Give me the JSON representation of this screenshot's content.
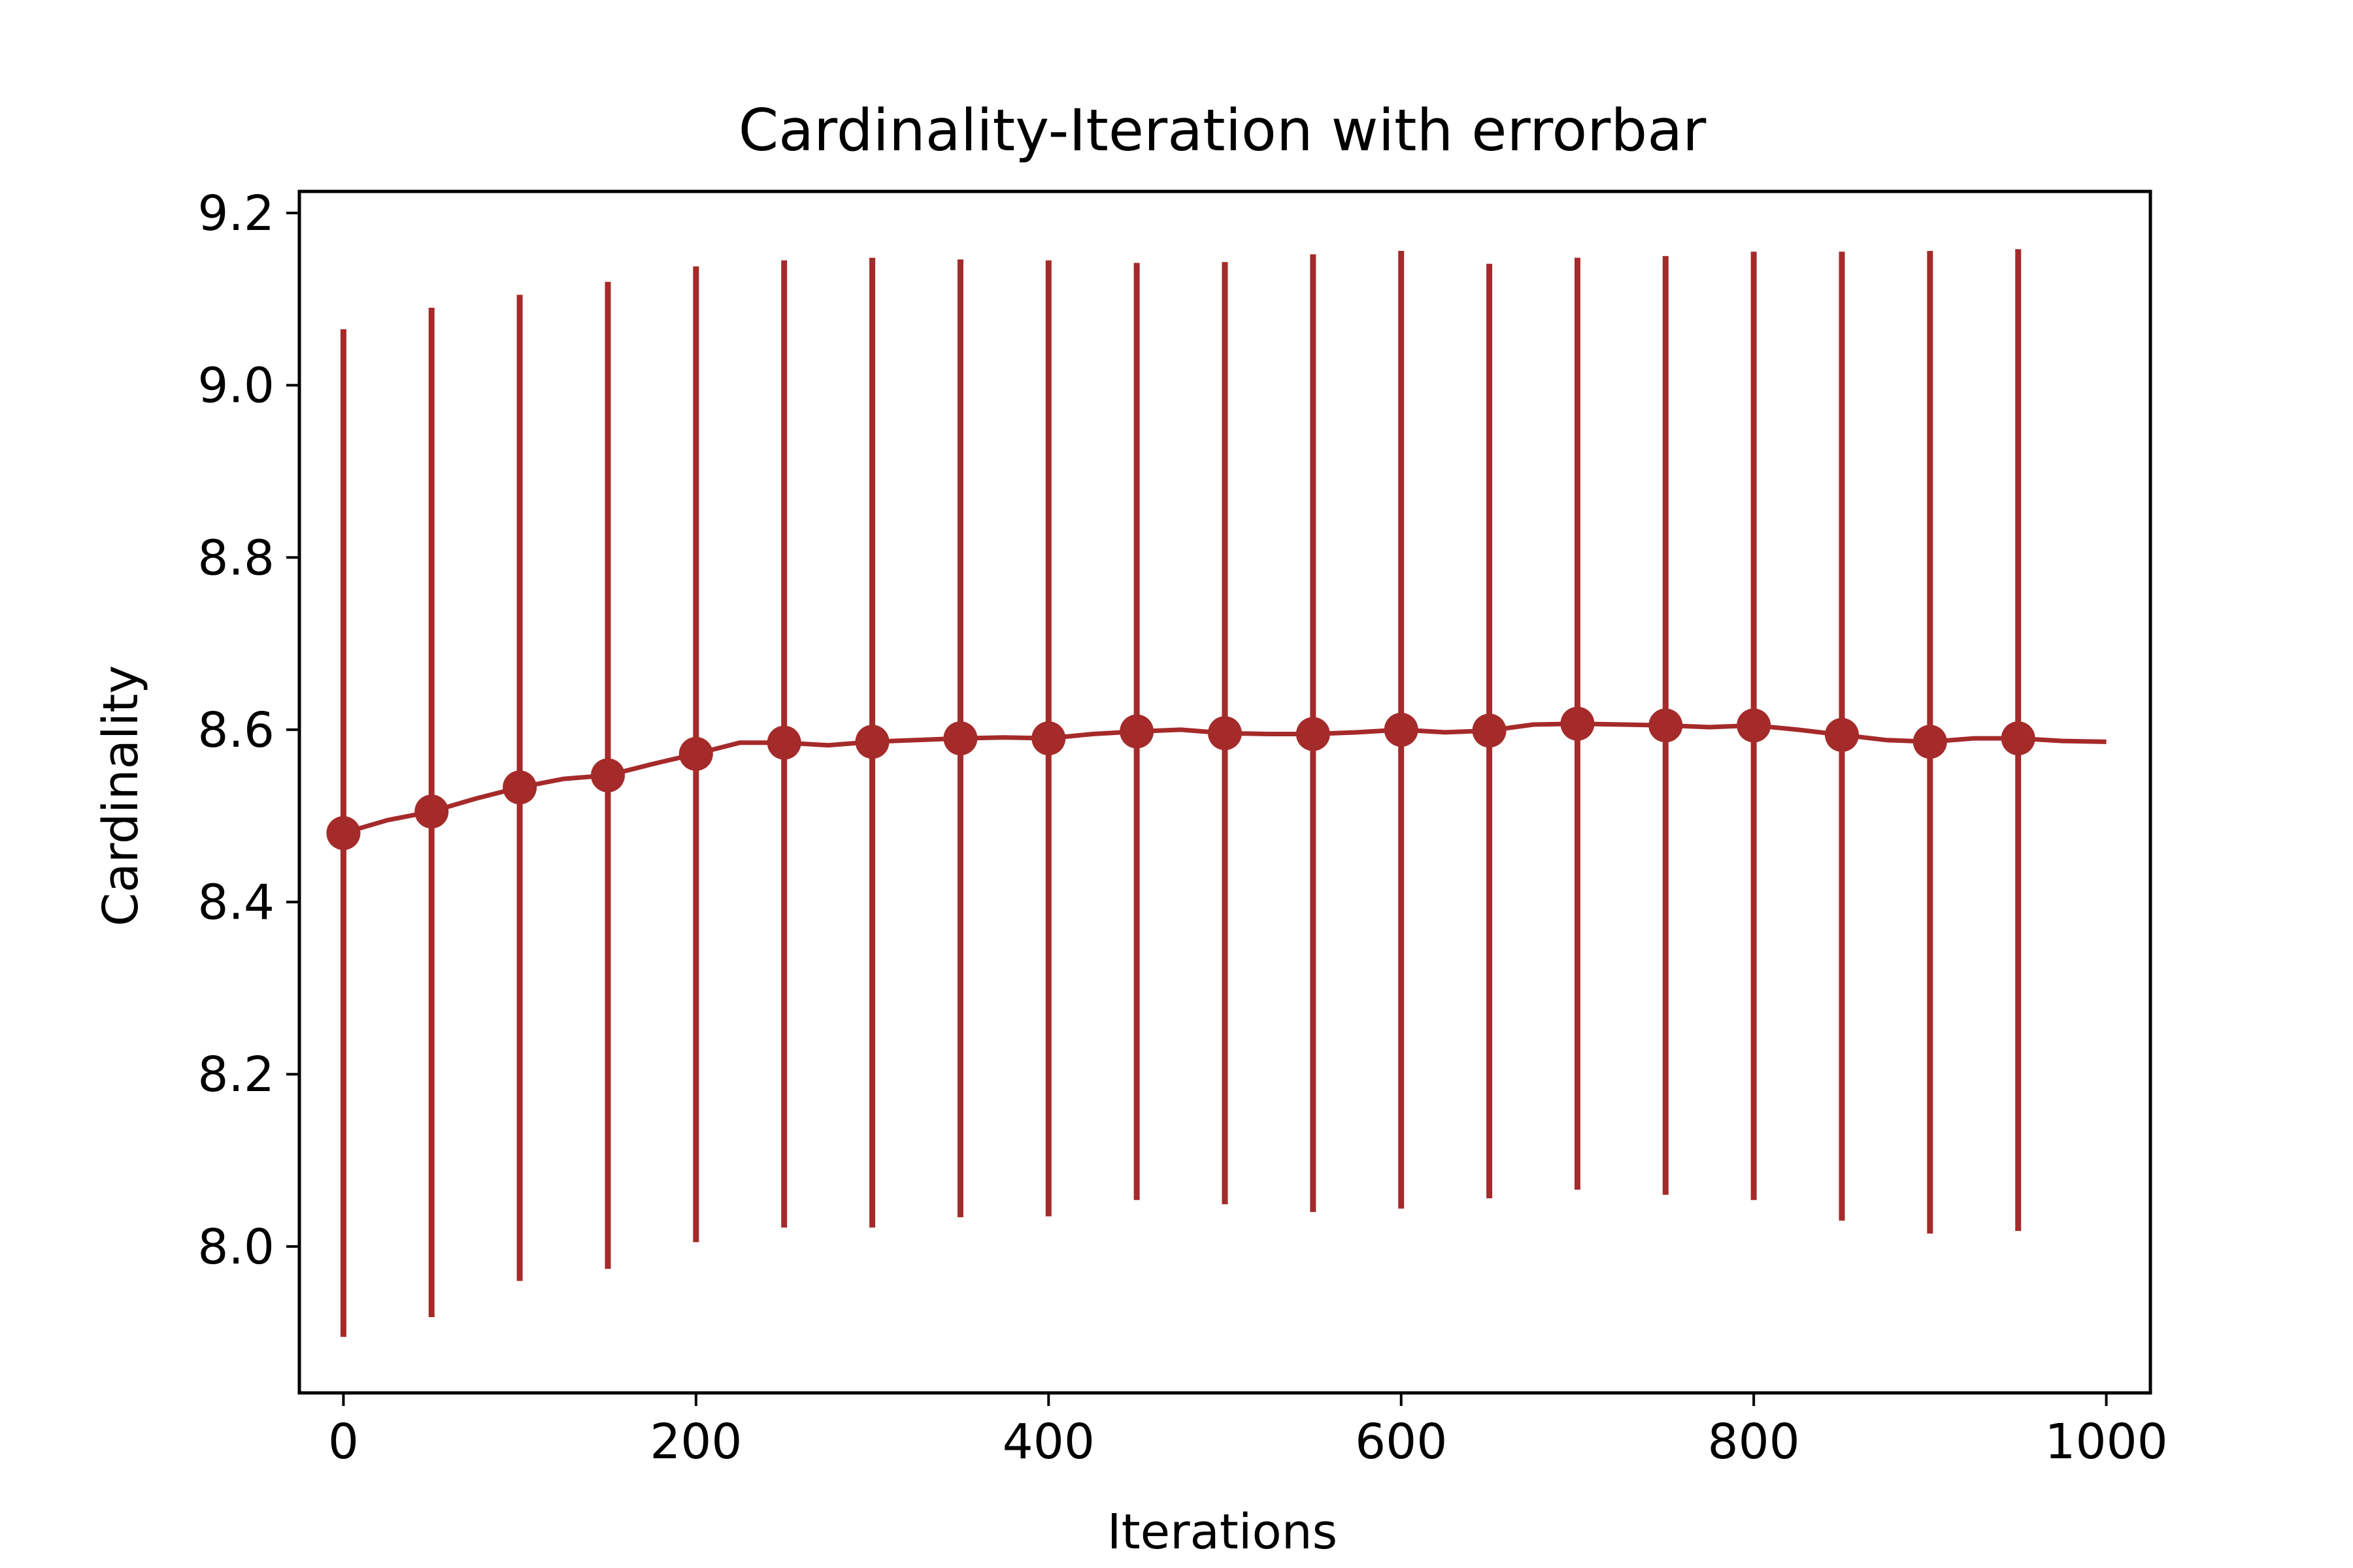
{
  "chart_data": {
    "type": "line",
    "title": "Cardinality-Iteration with errorbar",
    "xlabel": "Iterations",
    "ylabel": "Cardinality",
    "xlim": [
      -25,
      1025
    ],
    "ylim": [
      7.83,
      9.225
    ],
    "x_ticks": [
      0,
      200,
      400,
      600,
      800,
      1000
    ],
    "x_tick_labels": [
      "0",
      "200",
      "400",
      "600",
      "800",
      "1000"
    ],
    "y_ticks": [
      8.0,
      8.2,
      8.4,
      8.6,
      8.8,
      9.0,
      9.2
    ],
    "y_tick_labels": [
      "8.0",
      "8.2",
      "8.4",
      "8.6",
      "8.8",
      "9.0",
      "9.2"
    ],
    "grid": false,
    "color": "#a52a2a",
    "series": [
      {
        "x": [
          0,
          50,
          100,
          150,
          200,
          250,
          300,
          350,
          400,
          450,
          500,
          550,
          600,
          650,
          700,
          750,
          800,
          850,
          900,
          950
        ],
        "y": [
          8.48,
          8.505,
          8.533,
          8.547,
          8.572,
          8.585,
          8.586,
          8.59,
          8.59,
          8.598,
          8.596,
          8.595,
          8.6,
          8.599,
          8.607,
          8.605,
          8.605,
          8.594,
          8.586,
          8.59
        ],
        "err_low": [
          7.895,
          7.918,
          7.96,
          7.974,
          8.005,
          8.022,
          8.022,
          8.034,
          8.035,
          8.054,
          8.049,
          8.04,
          8.044,
          8.056,
          8.066,
          8.06,
          8.054,
          8.03,
          8.015,
          8.018
        ],
        "err_high": [
          9.065,
          9.09,
          9.105,
          9.12,
          9.138,
          9.145,
          9.148,
          9.146,
          9.145,
          9.142,
          9.143,
          9.152,
          9.156,
          9.141,
          9.148,
          9.15,
          9.155,
          9.155,
          9.156,
          9.158
        ]
      }
    ],
    "line_x": [
      0,
      25,
      50,
      75,
      100,
      125,
      150,
      175,
      200,
      225,
      250,
      275,
      300,
      325,
      350,
      375,
      400,
      425,
      450,
      475,
      500,
      525,
      550,
      575,
      600,
      625,
      650,
      675,
      700,
      725,
      750,
      775,
      800,
      825,
      850,
      875,
      900,
      925,
      950,
      975,
      1000
    ],
    "line_y": [
      8.48,
      8.495,
      8.505,
      8.52,
      8.533,
      8.543,
      8.547,
      8.56,
      8.572,
      8.585,
      8.585,
      8.582,
      8.586,
      8.588,
      8.59,
      8.591,
      8.59,
      8.595,
      8.598,
      8.6,
      8.596,
      8.595,
      8.595,
      8.597,
      8.6,
      8.597,
      8.599,
      8.606,
      8.607,
      8.606,
      8.605,
      8.603,
      8.605,
      8.6,
      8.594,
      8.588,
      8.586,
      8.59,
      8.59,
      8.587,
      8.586
    ]
  }
}
